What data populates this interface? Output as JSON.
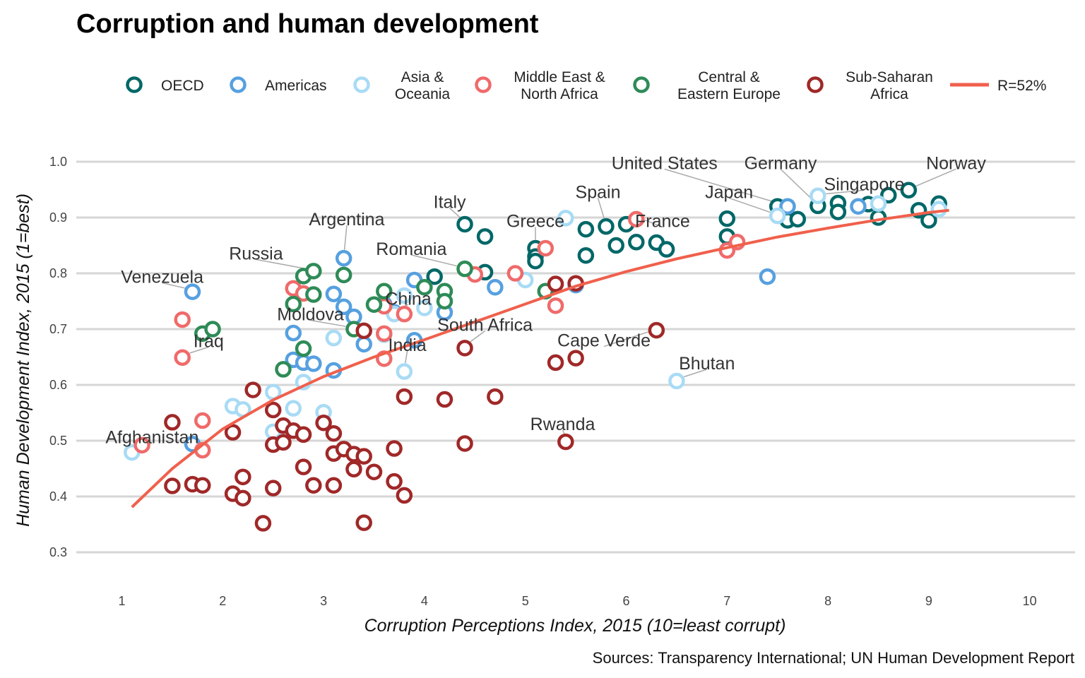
{
  "chart_data": {
    "type": "scatter",
    "title": "Corruption and human development",
    "xlabel": "Corruption Perceptions Index, 2015 (10=least corrupt)",
    "ylabel": "Human Development Index, 2015 (1=best)",
    "caption": "Sources: Transparency International; UN Human Development Report",
    "xlim": [
      0.6,
      10.4
    ],
    "ylim": [
      0.26,
      1.04
    ],
    "x_ticks": [
      1,
      2,
      3,
      4,
      5,
      6,
      7,
      8,
      9,
      10
    ],
    "y_ticks": [
      0.3,
      0.4,
      0.5,
      0.6,
      0.7,
      0.8,
      0.9,
      1.0
    ],
    "grid": "horizontal",
    "legend_position": "top",
    "fit_label": "R=52%",
    "fit_color": "#f0604c",
    "fit_curve": [
      [
        1.1,
        0.381
      ],
      [
        1.5,
        0.45
      ],
      [
        2,
        0.521
      ],
      [
        2.5,
        0.573
      ],
      [
        3,
        0.615
      ],
      [
        3.5,
        0.65
      ],
      [
        4,
        0.681
      ],
      [
        4.5,
        0.713
      ],
      [
        5,
        0.745
      ],
      [
        5.5,
        0.777
      ],
      [
        6,
        0.803
      ],
      [
        6.5,
        0.826
      ],
      [
        7,
        0.846
      ],
      [
        7.5,
        0.865
      ],
      [
        8,
        0.881
      ],
      [
        8.5,
        0.896
      ],
      [
        9,
        0.909
      ],
      [
        9.2,
        0.913
      ]
    ],
    "series": [
      {
        "name": "OECD",
        "legend": [
          "OECD"
        ],
        "color": "#006767",
        "points": [
          [
            4.4,
            0.888
          ],
          [
            4.6,
            0.866
          ],
          [
            4.1,
            0.794
          ],
          [
            4.6,
            0.802
          ],
          [
            5.1,
            0.845
          ],
          [
            5.1,
            0.83
          ],
          [
            5.1,
            0.822
          ],
          [
            5.6,
            0.879
          ],
          [
            5.8,
            0.884
          ],
          [
            5.6,
            0.832
          ],
          [
            6.0,
            0.888
          ],
          [
            5.9,
            0.85
          ],
          [
            6.1,
            0.856
          ],
          [
            6.3,
            0.855
          ],
          [
            6.4,
            0.843
          ],
          [
            7.0,
            0.898
          ],
          [
            7.0,
            0.866
          ],
          [
            7.5,
            0.92
          ],
          [
            7.6,
            0.895
          ],
          [
            7.7,
            0.897
          ],
          [
            7.9,
            0.921
          ],
          [
            8.1,
            0.926
          ],
          [
            8.1,
            0.91
          ],
          [
            8.4,
            0.924
          ],
          [
            8.5,
            0.9
          ],
          [
            8.6,
            0.94
          ],
          [
            8.8,
            0.949
          ],
          [
            8.9,
            0.913
          ],
          [
            9.0,
            0.895
          ],
          [
            9.1,
            0.925
          ]
        ]
      },
      {
        "name": "Americas",
        "legend": [
          "Americas"
        ],
        "color": "#56a0e0",
        "points": [
          [
            1.7,
            0.767
          ],
          [
            1.7,
            0.494
          ],
          [
            2.7,
            0.693
          ],
          [
            2.7,
            0.645
          ],
          [
            2.8,
            0.64
          ],
          [
            2.9,
            0.638
          ],
          [
            3.1,
            0.763
          ],
          [
            3.1,
            0.626
          ],
          [
            3.2,
            0.827
          ],
          [
            3.2,
            0.74
          ],
          [
            3.3,
            0.722
          ],
          [
            3.4,
            0.673
          ],
          [
            3.6,
            0.745
          ],
          [
            3.7,
            0.73
          ],
          [
            3.9,
            0.788
          ],
          [
            3.9,
            0.68
          ],
          [
            4.2,
            0.73
          ],
          [
            4.7,
            0.775
          ],
          [
            5.5,
            0.779
          ],
          [
            7.4,
            0.794
          ],
          [
            7.6,
            0.92
          ],
          [
            8.3,
            0.92
          ]
        ]
      },
      {
        "name": "Asia & Oceania",
        "legend": [
          "Asia &",
          "Oceania"
        ],
        "color": "#a8dbf5",
        "points": [
          [
            1.1,
            0.479
          ],
          [
            2.1,
            0.562
          ],
          [
            2.2,
            0.556
          ],
          [
            2.5,
            0.587
          ],
          [
            2.5,
            0.516
          ],
          [
            2.7,
            0.558
          ],
          [
            2.8,
            0.605
          ],
          [
            3.0,
            0.551
          ],
          [
            3.1,
            0.684
          ],
          [
            3.6,
            0.69
          ],
          [
            3.7,
            0.727
          ],
          [
            3.8,
            0.624
          ],
          [
            3.8,
            0.76
          ],
          [
            4.0,
            0.738
          ],
          [
            5.0,
            0.788
          ],
          [
            5.4,
            0.899
          ],
          [
            6.5,
            0.607
          ],
          [
            7.5,
            0.903
          ],
          [
            7.9,
            0.939
          ],
          [
            8.5,
            0.925
          ],
          [
            9.1,
            0.915
          ]
        ]
      },
      {
        "name": "Middle East & North Africa",
        "legend": [
          "Middle East &",
          "North Africa"
        ],
        "color": "#f06a6a",
        "points": [
          [
            1.2,
            0.492
          ],
          [
            1.6,
            0.717
          ],
          [
            1.6,
            0.649
          ],
          [
            1.8,
            0.536
          ],
          [
            1.8,
            0.483
          ],
          [
            2.7,
            0.773
          ],
          [
            2.8,
            0.764
          ],
          [
            3.6,
            0.692
          ],
          [
            3.6,
            0.741
          ],
          [
            3.6,
            0.647
          ],
          [
            3.8,
            0.727
          ],
          [
            4.5,
            0.798
          ],
          [
            4.9,
            0.8
          ],
          [
            5.2,
            0.845
          ],
          [
            5.3,
            0.742
          ],
          [
            6.1,
            0.897
          ],
          [
            7.0,
            0.841
          ],
          [
            7.1,
            0.856
          ]
        ]
      },
      {
        "name": "Central & Eastern Europe",
        "legend": [
          "Central &",
          "Eastern Europe"
        ],
        "color": "#2e8b57",
        "points": [
          [
            1.8,
            0.692
          ],
          [
            1.9,
            0.7
          ],
          [
            2.6,
            0.628
          ],
          [
            2.7,
            0.745
          ],
          [
            2.8,
            0.665
          ],
          [
            2.8,
            0.795
          ],
          [
            2.9,
            0.804
          ],
          [
            2.9,
            0.762
          ],
          [
            3.2,
            0.797
          ],
          [
            3.3,
            0.7
          ],
          [
            3.5,
            0.744
          ],
          [
            3.6,
            0.768
          ],
          [
            4.0,
            0.775
          ],
          [
            4.2,
            0.768
          ],
          [
            4.2,
            0.75
          ],
          [
            4.4,
            0.808
          ],
          [
            5.2,
            0.768
          ]
        ]
      },
      {
        "name": "Sub-Saharan Africa",
        "legend": [
          "Sub-Saharan",
          "Africa"
        ],
        "color": "#a02828",
        "points": [
          [
            1.5,
            0.533
          ],
          [
            1.5,
            0.419
          ],
          [
            1.7,
            0.422
          ],
          [
            1.8,
            0.42
          ],
          [
            2.1,
            0.515
          ],
          [
            2.1,
            0.405
          ],
          [
            2.2,
            0.435
          ],
          [
            2.2,
            0.397
          ],
          [
            2.3,
            0.591
          ],
          [
            2.4,
            0.352
          ],
          [
            2.5,
            0.555
          ],
          [
            2.5,
            0.493
          ],
          [
            2.5,
            0.415
          ],
          [
            2.6,
            0.527
          ],
          [
            2.6,
            0.497
          ],
          [
            2.7,
            0.518
          ],
          [
            2.8,
            0.511
          ],
          [
            2.8,
            0.453
          ],
          [
            2.9,
            0.42
          ],
          [
            3.0,
            0.532
          ],
          [
            3.1,
            0.513
          ],
          [
            3.1,
            0.477
          ],
          [
            3.1,
            0.42
          ],
          [
            3.2,
            0.485
          ],
          [
            3.3,
            0.476
          ],
          [
            3.3,
            0.449
          ],
          [
            3.4,
            0.697
          ],
          [
            3.4,
            0.472
          ],
          [
            3.4,
            0.353
          ],
          [
            3.5,
            0.444
          ],
          [
            3.7,
            0.486
          ],
          [
            3.7,
            0.427
          ],
          [
            3.8,
            0.579
          ],
          [
            3.8,
            0.402
          ],
          [
            4.2,
            0.574
          ],
          [
            4.4,
            0.666
          ],
          [
            4.4,
            0.495
          ],
          [
            4.7,
            0.579
          ],
          [
            5.3,
            0.781
          ],
          [
            5.3,
            0.64
          ],
          [
            5.4,
            0.498
          ],
          [
            5.5,
            0.782
          ],
          [
            5.5,
            0.648
          ],
          [
            6.3,
            0.698
          ]
        ]
      }
    ],
    "annotations": [
      {
        "text": "Afghanistan",
        "x": 1.1,
        "y": 0.479,
        "lx": 1.3,
        "ly": 0.506
      },
      {
        "text": "Iraq",
        "x": 1.6,
        "y": 0.649,
        "lx": 1.86,
        "ly": 0.678
      },
      {
        "text": "Venezuela",
        "x": 1.7,
        "y": 0.767,
        "lx": 1.4,
        "ly": 0.793
      },
      {
        "text": "Russia",
        "x": 2.9,
        "y": 0.804,
        "lx": 2.33,
        "ly": 0.835
      },
      {
        "text": "Argentina",
        "x": 3.2,
        "y": 0.827,
        "lx": 3.23,
        "ly": 0.896
      },
      {
        "text": "Moldova",
        "x": 3.3,
        "y": 0.7,
        "lx": 2.87,
        "ly": 0.726
      },
      {
        "text": "Italy",
        "x": 4.4,
        "y": 0.888,
        "lx": 4.25,
        "ly": 0.927
      },
      {
        "text": "Romania",
        "x": 4.4,
        "y": 0.808,
        "lx": 3.87,
        "ly": 0.843
      },
      {
        "text": "China",
        "x": 3.7,
        "y": 0.727,
        "lx": 3.84,
        "ly": 0.754
      },
      {
        "text": "South Africa",
        "x": 4.4,
        "y": 0.666,
        "lx": 4.6,
        "ly": 0.707
      },
      {
        "text": "India",
        "x": 3.8,
        "y": 0.624,
        "lx": 3.83,
        "ly": 0.671
      },
      {
        "text": "Greece",
        "x": 5.1,
        "y": 0.845,
        "lx": 5.1,
        "ly": 0.893
      },
      {
        "text": "Spain",
        "x": 5.8,
        "y": 0.884,
        "lx": 5.72,
        "ly": 0.945
      },
      {
        "text": "France",
        "x": 6.1,
        "y": 0.897,
        "lx": 6.36,
        "ly": 0.893
      },
      {
        "text": "Cape Verde",
        "x": 6.3,
        "y": 0.698,
        "lx": 5.78,
        "ly": 0.679
      },
      {
        "text": "Bhutan",
        "x": 6.5,
        "y": 0.607,
        "lx": 6.8,
        "ly": 0.638
      },
      {
        "text": "Rwanda",
        "x": 5.4,
        "y": 0.498,
        "lx": 5.37,
        "ly": 0.529
      },
      {
        "text": "United States",
        "x": 7.6,
        "y": 0.92,
        "lx": 6.38,
        "ly": 0.997
      },
      {
        "text": "Japan",
        "x": 7.5,
        "y": 0.903,
        "lx": 7.02,
        "ly": 0.945
      },
      {
        "text": "Germany",
        "x": 7.9,
        "y": 0.921,
        "lx": 7.53,
        "ly": 0.997
      },
      {
        "text": "Singapore",
        "x": 7.9,
        "y": 0.939,
        "lx": 8.36,
        "ly": 0.959
      },
      {
        "text": "Norway",
        "x": 8.8,
        "y": 0.949,
        "lx": 9.27,
        "ly": 0.997
      }
    ]
  }
}
